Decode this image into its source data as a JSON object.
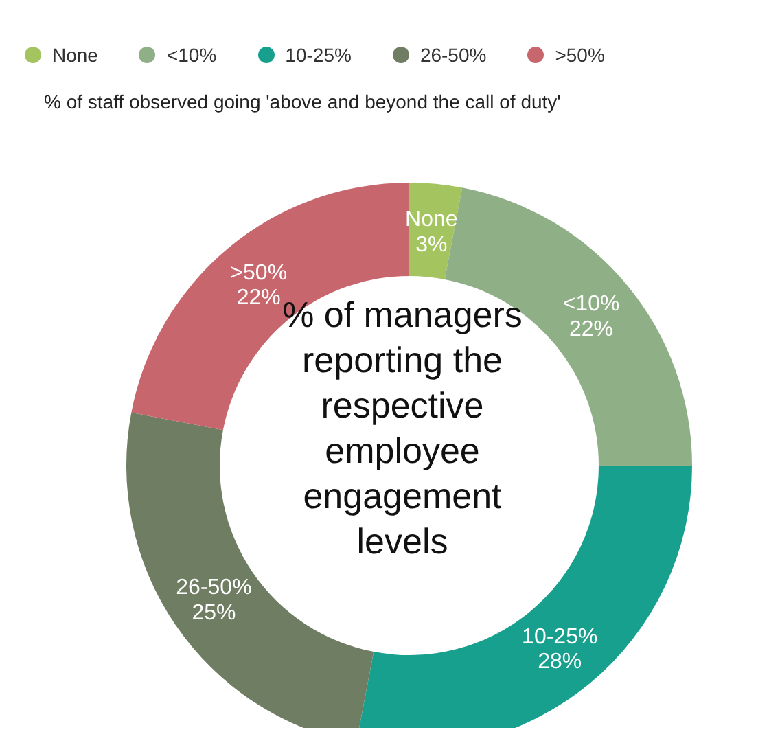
{
  "chart_data": {
    "type": "donut",
    "title": "% of managers reporting the respective employee engagement levels",
    "subtitle": "% of staff observed going 'above and beyond the call of duty'",
    "categories": [
      "None",
      "<10%",
      "10-25%",
      "26-50%",
      ">50%"
    ],
    "values": [
      3,
      22,
      28,
      25,
      22
    ],
    "colors": [
      "#a3c45e",
      "#8faf86",
      "#17a08e",
      "#6f7d63",
      "#c8666d"
    ],
    "value_labels": [
      "3%",
      "22%",
      "28%",
      "25%",
      "22%"
    ],
    "legend": "top"
  }
}
